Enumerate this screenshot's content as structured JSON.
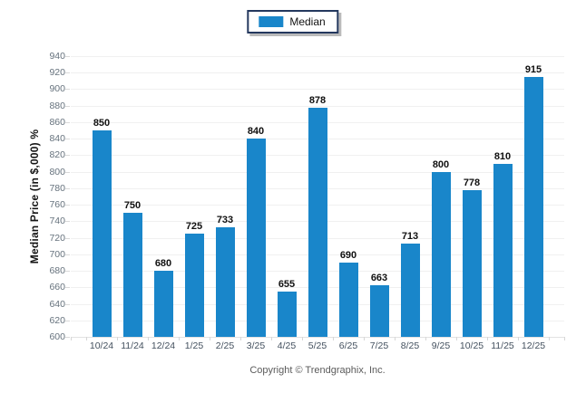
{
  "legend": {
    "items": [
      {
        "label": "Median",
        "color": "#1986ca"
      }
    ]
  },
  "y_axis": {
    "title": "Median Price (in $,000) %",
    "min": 600,
    "max": 940,
    "step": 20
  },
  "footer": {
    "copyright": "Copyright © Trendgraphix, Inc."
  },
  "colors": {
    "bar": "#1986ca",
    "gridline": "#f0f0f0",
    "axis_baseline": "#e2e2e2",
    "y_label_text": "#66727d",
    "x_label_text": "#43505e",
    "value_label_text": "#101010",
    "legend_border": "#24385e"
  },
  "chart_data": {
    "type": "bar",
    "categories": [
      "10/24",
      "11/24",
      "12/24",
      "1/25",
      "2/25",
      "3/25",
      "4/25",
      "5/25",
      "6/25",
      "7/25",
      "8/25",
      "9/25",
      "10/25",
      "11/25",
      "12/25"
    ],
    "series": [
      {
        "name": "Median",
        "values": [
          850,
          750,
          680,
          725,
          733,
          840,
          655,
          878,
          690,
          663,
          713,
          800,
          778,
          810,
          915
        ]
      }
    ],
    "title": "",
    "xlabel": "",
    "ylabel": "Median Price (in $,000) %",
    "ylim": [
      600,
      940
    ],
    "ytick_step": 20,
    "grid": true,
    "legend_position": "top-center",
    "bar_color": "#1986ca",
    "value_labels": true
  }
}
